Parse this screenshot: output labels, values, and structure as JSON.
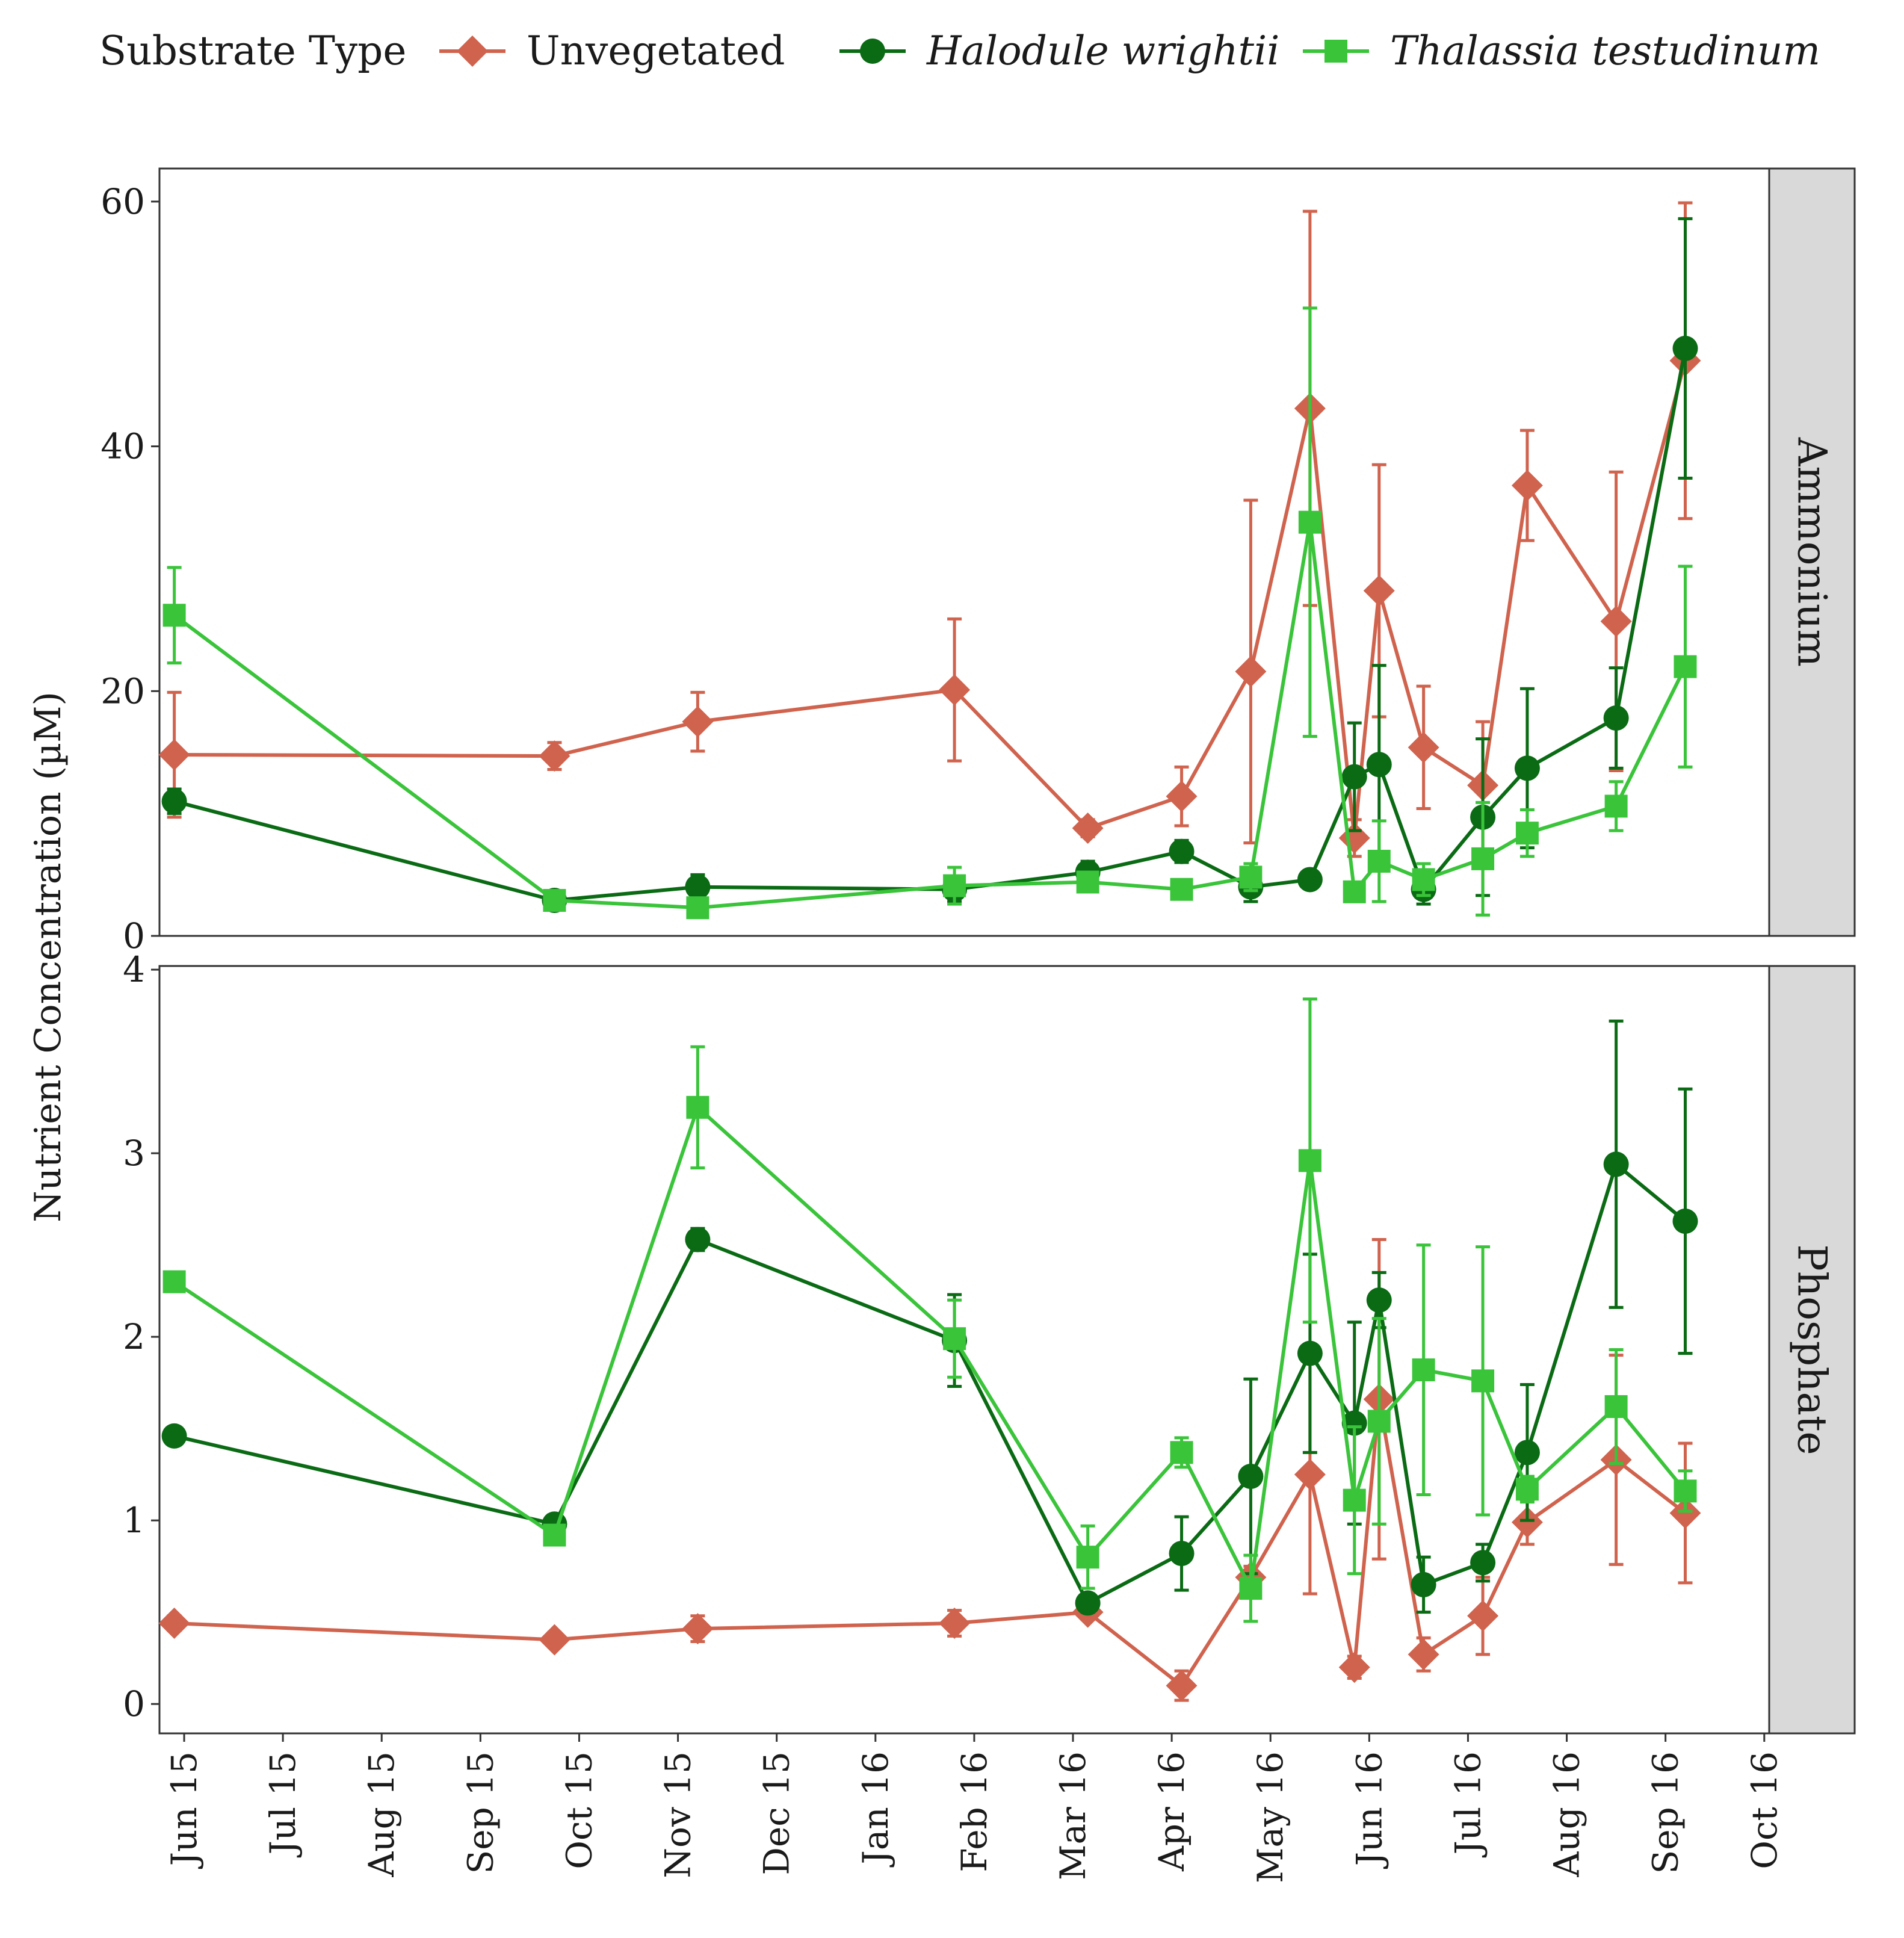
{
  "chart_data": {
    "type": "line",
    "legend": {
      "title": "Substrate Type",
      "placement": "top"
    },
    "ylabel": "Nutrient Concentration (µM)",
    "x_tick_labels": [
      "Jun 15",
      "Jul 15",
      "Aug 15",
      "Sep 15",
      "Oct 15",
      "Nov 15",
      "Dec 15",
      "Jan 16",
      "Feb 16",
      "Mar 16",
      "Apr 16",
      "May 16",
      "Jun 16",
      "Jul 16",
      "Aug 16",
      "Sep 16",
      "Oct 16"
    ],
    "x_range_months": [
      -0.25,
      16.05
    ],
    "series_meta": [
      {
        "key": "unveg",
        "name": "Unvegetated",
        "italic": false,
        "color": "#d0634e",
        "marker": "diamond"
      },
      {
        "key": "halo",
        "name": "Halodule wrightii",
        "italic": true,
        "color": "#0a6b14",
        "marker": "circle"
      },
      {
        "key": "thal",
        "name": "Thalassia testudinum",
        "italic": true,
        "color": "#3ac43a",
        "marker": "square"
      }
    ],
    "panels": [
      {
        "name": "Ammonium",
        "ylim": [
          0,
          62.7
        ],
        "yticks": [
          0,
          20,
          40,
          60
        ],
        "series": {
          "unveg": {
            "x": [
              -0.1,
              3.75,
              5.2,
              7.8,
              9.15,
              10.1,
              10.8,
              11.4,
              11.85,
              12.1,
              12.55,
              13.15,
              13.6,
              14.5,
              15.2
            ],
            "y": [
              14.8,
              14.7,
              17.5,
              20.1,
              8.8,
              11.4,
              21.6,
              43.1,
              8.0,
              28.2,
              15.4,
              12.3,
              36.8,
              25.7,
              47.0
            ],
            "err": [
              5.1,
              1.1,
              2.4,
              5.8,
              0.7,
              2.4,
              14.0,
              16.1,
              1.5,
              10.3,
              5.0,
              5.2,
              4.5,
              12.2,
              12.9
            ]
          },
          "halo": {
            "x": [
              -0.1,
              3.75,
              5.2,
              7.8,
              9.15,
              10.1,
              10.8,
              11.4,
              11.85,
              12.1,
              12.55,
              13.15,
              13.6,
              14.5,
              15.2
            ],
            "y": [
              11.0,
              2.9,
              4.0,
              3.8,
              5.2,
              6.9,
              4.0,
              4.6,
              13.0,
              14.0,
              3.8,
              9.7,
              13.7,
              17.8,
              48.0
            ],
            "err": [
              1.0,
              0.6,
              1.0,
              1.0,
              0.9,
              0.9,
              1.2,
              0.6,
              4.4,
              8.1,
              1.2,
              6.4,
              6.5,
              4.1,
              10.6
            ]
          },
          "thal": {
            "x": [
              -0.1,
              3.75,
              5.2,
              7.8,
              9.15,
              10.1,
              10.8,
              11.4,
              11.85,
              12.1,
              12.55,
              13.15,
              13.6,
              14.5,
              15.2
            ],
            "y": [
              26.2,
              2.9,
              2.3,
              4.1,
              4.4,
              3.8,
              4.8,
              33.8,
              3.6,
              6.1,
              4.6,
              6.3,
              8.4,
              10.6,
              22.0
            ],
            "err": [
              3.9,
              0.5,
              0.7,
              1.5,
              0.7,
              0.6,
              1.1,
              17.5,
              0.8,
              3.3,
              1.3,
              4.6,
              1.9,
              2.0,
              8.2
            ]
          }
        }
      },
      {
        "name": "Phosphate",
        "ylim": [
          -0.16,
          4.02
        ],
        "yticks": [
          0,
          1,
          2,
          3,
          4
        ],
        "series": {
          "unveg": {
            "x": [
              -0.1,
              3.75,
              5.2,
              7.8,
              9.15,
              10.1,
              10.8,
              11.4,
              11.85,
              12.1,
              12.55,
              13.15,
              13.6,
              14.5,
              15.2
            ],
            "y": [
              0.44,
              0.35,
              0.41,
              0.44,
              0.5,
              0.1,
              0.69,
              1.25,
              0.2,
              1.66,
              0.27,
              0.48,
              0.99,
              1.33,
              1.04
            ],
            "err": [
              0.04,
              0.04,
              0.07,
              0.07,
              0.04,
              0.08,
              0.06,
              0.65,
              0.06,
              0.87,
              0.09,
              0.21,
              0.12,
              0.57,
              0.38
            ]
          },
          "halo": {
            "x": [
              -0.1,
              3.75,
              5.2,
              7.8,
              9.15,
              10.1,
              10.8,
              11.4,
              11.85,
              12.1,
              12.55,
              13.15,
              13.6,
              14.5,
              15.2
            ],
            "y": [
              1.46,
              0.98,
              2.53,
              1.98,
              0.55,
              0.82,
              1.24,
              1.91,
              1.53,
              2.2,
              0.65,
              0.77,
              1.37,
              2.94,
              2.63
            ],
            "err": [
              0.04,
              0.05,
              0.06,
              0.25,
              0.05,
              0.2,
              0.53,
              0.54,
              0.55,
              0.15,
              0.15,
              0.1,
              0.37,
              0.78,
              0.72
            ]
          },
          "thal": {
            "x": [
              -0.1,
              3.75,
              5.2,
              7.8,
              9.15,
              10.1,
              10.8,
              11.4,
              11.85,
              12.1,
              12.55,
              13.15,
              13.6,
              14.5,
              15.2
            ],
            "y": [
              2.3,
              0.92,
              3.25,
              1.99,
              0.8,
              1.37,
              0.63,
              2.96,
              1.11,
              1.54,
              1.82,
              1.76,
              1.17,
              1.62,
              1.16
            ],
            "err": [
              0.03,
              0.04,
              0.33,
              0.21,
              0.17,
              0.08,
              0.18,
              0.88,
              0.4,
              0.56,
              0.68,
              0.73,
              0.07,
              0.31,
              0.11
            ]
          }
        }
      }
    ]
  }
}
